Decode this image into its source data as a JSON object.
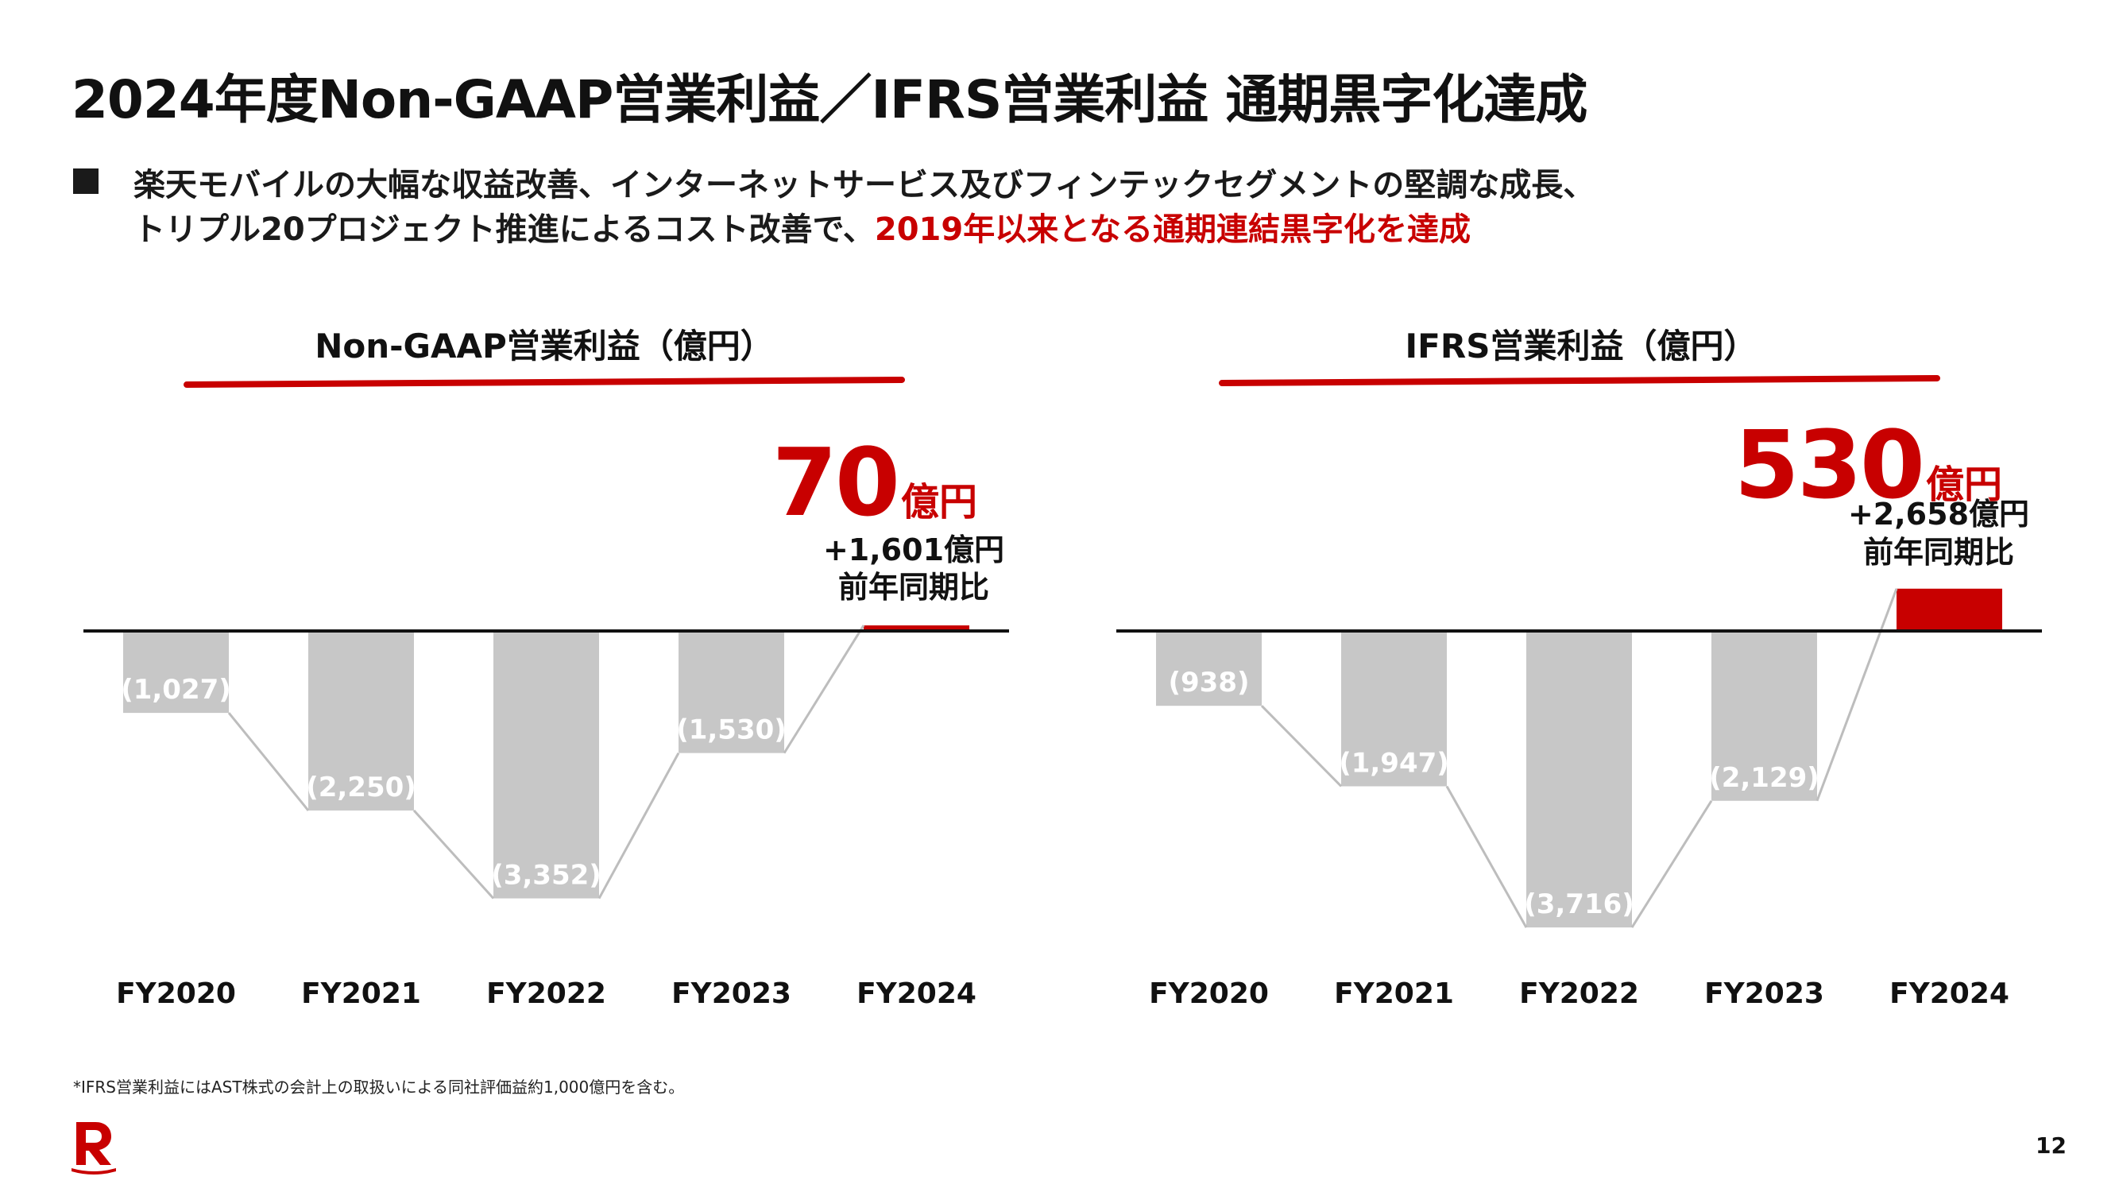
{
  "header": {
    "title": "2024年度Non-GAAP営業利益／IFRS営業利益 通期黒字化達成",
    "subtitle_line1": "楽天モバイルの大幅な収益改善、インターネットサービス及びフィンテックセグメントの堅調な成長、",
    "subtitle_line2_prefix": "トリプル20プロジェクト推進によるコスト改善で、",
    "subtitle_line2_highlight": "2019年以来となる通期連結黒字化を達成"
  },
  "colors": {
    "negative_bar": "#c7c7c7",
    "positive_bar": "#c80000",
    "accent": "#c80000",
    "bar_label": "#ffffff",
    "connector": "#bdbdbd",
    "baseline": "#111111"
  },
  "chart_data": [
    {
      "type": "bar",
      "title": "Non-GAAP営業利益（億円）",
      "unit": "億円",
      "categories": [
        "FY2020",
        "FY2021",
        "FY2022",
        "FY2023",
        "FY2024"
      ],
      "values": [
        -1027,
        -2250,
        -3352,
        -1530,
        70
      ],
      "value_labels": [
        "(1,027)",
        "(2,250)",
        "(3,352)",
        "(1,530)",
        ""
      ],
      "ylim": [
        -3352,
        0
      ],
      "grid": false,
      "legend": "none",
      "callout": {
        "value": "70",
        "unit": "億円",
        "change": "+1,601億円",
        "change_label": "前年同期比"
      }
    },
    {
      "type": "bar",
      "title": "IFRS営業利益（億円）",
      "unit": "億円",
      "categories": [
        "FY2020",
        "FY2021",
        "FY2022",
        "FY2023",
        "FY2024"
      ],
      "values": [
        -938,
        -1947,
        -3716,
        -2129,
        530
      ],
      "value_labels": [
        "(938)",
        "(1,947)",
        "(3,716)",
        "(2,129)",
        ""
      ],
      "ylim": [
        -3716,
        530
      ],
      "grid": false,
      "legend": "none",
      "callout": {
        "value": "530",
        "unit": "億円",
        "change": "+2,658億円",
        "change_label": "前年同期比"
      }
    }
  ],
  "footnote": "*IFRS営業利益にはAST株式の会計上の取扱いによる同社評価益約1,000億円を含む。",
  "logo": {
    "icon": "rakuten-r-logo-icon",
    "letter": "R"
  },
  "page_number": "12"
}
